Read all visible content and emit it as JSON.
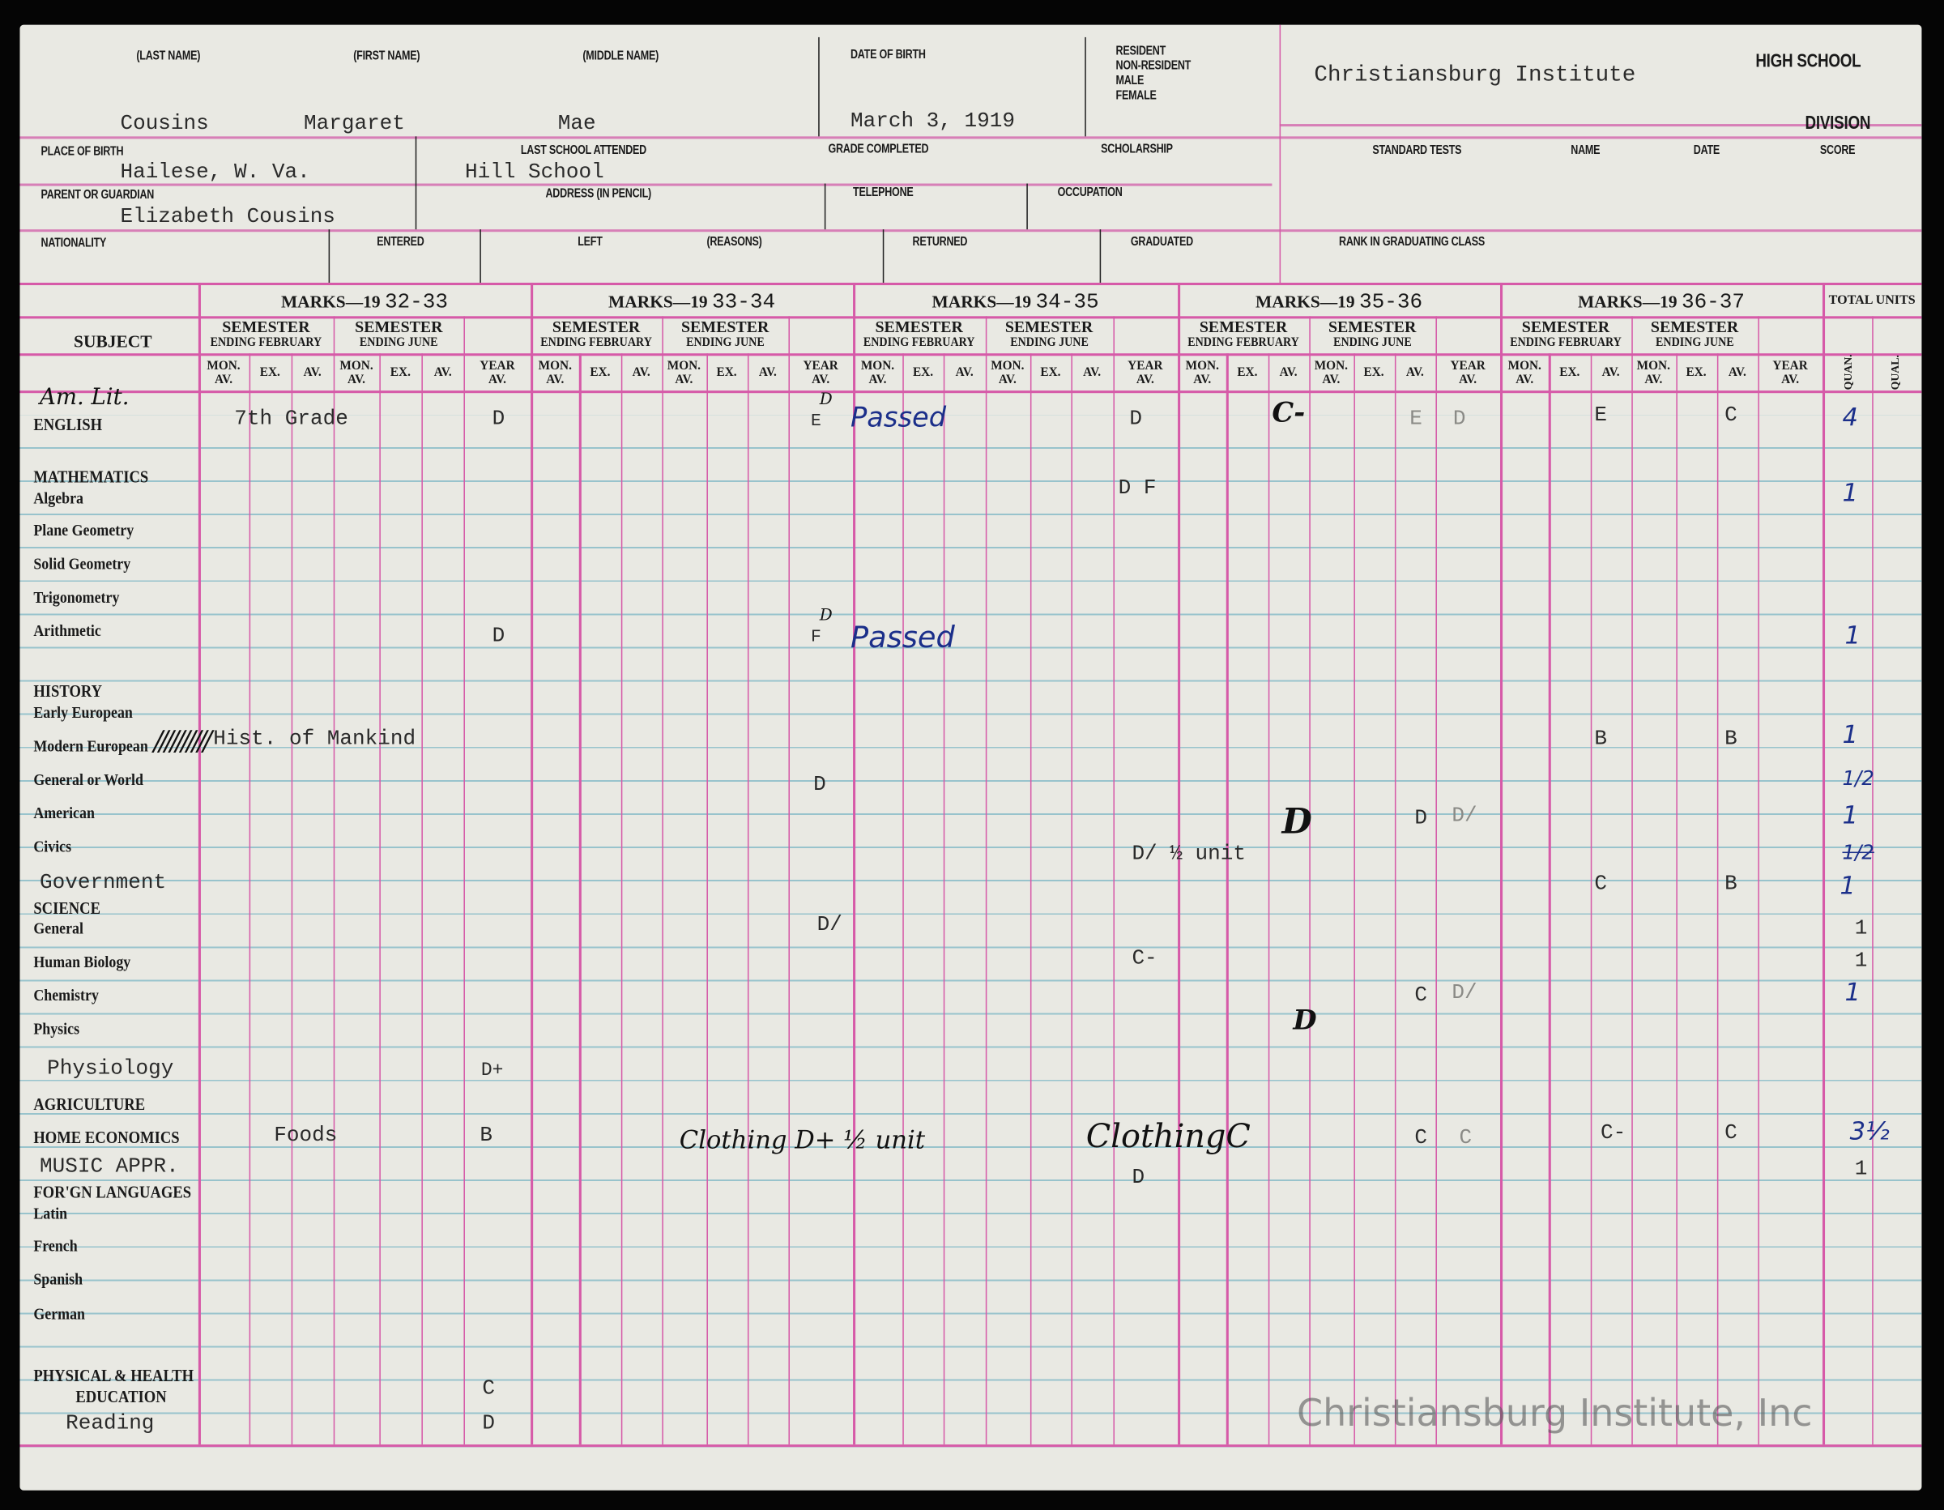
{
  "header": {
    "last_name_label": "(LAST NAME)",
    "first_name_label": "(FIRST NAME)",
    "middle_name_label": "(MIDDLE NAME)",
    "dob_label": "DATE OF BIRTH",
    "status_labels": [
      "RESIDENT",
      "NON-RESIDENT",
      "MALE",
      "FEMALE"
    ],
    "last_name": "Cousins",
    "first_name": "Margaret",
    "middle_name": "Mae",
    "dob": "March 3, 1919",
    "school_name": "Christiansburg Institute",
    "high_school_label": "HIGH SCHOOL",
    "division_label": "DIVISION",
    "place_of_birth_label": "PLACE OF BIRTH",
    "place_of_birth": "Hailese, W. Va.",
    "last_school_label": "LAST SCHOOL ATTENDED",
    "last_school": "Hill School",
    "grade_completed_label": "GRADE COMPLETED",
    "scholarship_label": "SCHOLARSHIP",
    "standard_tests_label": "STANDARD TESTS",
    "name_label": "NAME",
    "date_label": "DATE",
    "score_label": "SCORE",
    "parent_label": "PARENT OR GUARDIAN",
    "parent": "Elizabeth Cousins",
    "address_label": "ADDRESS (IN PENCIL)",
    "telephone_label": "TELEPHONE",
    "occupation_label": "OCCUPATION",
    "nationality_label": "NATIONALITY",
    "entered_label": "ENTERED",
    "left_label": "LEFT",
    "reasons_label": "(REASONS)",
    "returned_label": "RETURNED",
    "graduated_label": "GRADUATED",
    "rank_label": "RANK IN GRADUATING CLASS"
  },
  "marks": {
    "subject_header": "SUBJECT",
    "marks_prefix": "MARKS—19",
    "years": [
      "32-33",
      "33-34",
      "34-35",
      "35-36",
      "36-37"
    ],
    "semester": "SEMESTER",
    "ending_february": "ENDING FEBRUARY",
    "ending_june": "ENDING JUNE",
    "columns": [
      "MON. AV.",
      "EX.",
      "AV.",
      "MON. AV.",
      "EX.",
      "AV.",
      "YEAR AV."
    ],
    "total_units": "TOTAL UNITS",
    "quan": "QUAN.",
    "qual": "QUAL."
  },
  "subjects": {
    "english": "ENGLISH",
    "mathematics": "MATHEMATICS",
    "algebra": "Algebra",
    "plane_geometry": "Plane Geometry",
    "solid_geometry": "Solid Geometry",
    "trigonometry": "Trigonometry",
    "arithmetic": "Arithmetic",
    "history": "HISTORY",
    "early_european": "Early European",
    "modern_european": "Modern European",
    "general_world": "General or World",
    "american": "American",
    "civics": "Civics",
    "government": "Government",
    "science": "SCIENCE",
    "general": "General",
    "human_biology": "Human Biology",
    "chemistry": "Chemistry",
    "physics": "Physics",
    "physiology": "Physiology",
    "agriculture": "AGRICULTURE",
    "home_economics": "HOME ECONOMICS",
    "music": "MUSIC APPR.",
    "foreign_languages": "FOR'GN LANGUAGES",
    "latin": "Latin",
    "french": "French",
    "spanish": "Spanish",
    "german": "German",
    "physical_health": "PHYSICAL & HEALTH",
    "education": "EDUCATION",
    "reading": "Reading"
  },
  "records": {
    "english": {
      "note": "Am. Lit.",
      "grade_note": "7th Grade",
      "y3233_year": "D",
      "y3334_sup": "D",
      "y3334_year": "E",
      "y3334_note": "Passed",
      "y3435_year": "D",
      "y3536_feb_av": "C-",
      "y3536_june_av": "E",
      "y3536_year": "D",
      "y3637_feb_av": "E",
      "y3637_june_av": "C",
      "quan": "4"
    },
    "algebra": {
      "y3435_year": "D F",
      "quan": "1"
    },
    "arithmetic": {
      "y3233_year": "D",
      "y3334_sup": "D",
      "y3334_year": "F",
      "y3334_note": "Passed",
      "quan": "1"
    },
    "modern_european": {
      "strike": "//////////",
      "note": "Hist. of Mankind",
      "y3637_feb_av": "B",
      "y3637_june_av": "B",
      "quan": "1"
    },
    "general_world": {
      "y3334_year": "D",
      "quan": "1/2"
    },
    "american": {
      "y3536_feb_av": "D",
      "y3536_june_av": "D",
      "y3536_year": "D/",
      "quan": "1"
    },
    "civics": {
      "y3435_year": "D/ ½ unit",
      "quan": "1/2"
    },
    "government": {
      "y3637_feb_av": "C",
      "y3637_june_av": "B",
      "quan": "1"
    },
    "science_general": {
      "y3334_year": "D/",
      "quan": "1"
    },
    "human_biology": {
      "y3435_year": "C-",
      "quan": "1"
    },
    "chemistry": {
      "y3536_feb_av": "D",
      "y3536_june_av": "C",
      "y3536_year": "D/",
      "quan": "1"
    },
    "physiology": {
      "y3233_year": "D+"
    },
    "home_economics": {
      "note": "Foods",
      "y3233_year": "B",
      "y3334_note": "Clothing D+ ½ unit",
      "y3435_note": "ClothingC",
      "y3536_june_av": "C",
      "y3536_year": "C",
      "y3637_feb_av": "C-",
      "y3637_june_av": "C",
      "quan": "3½"
    },
    "music": {
      "y3435_year": "D",
      "quan": "1"
    },
    "physical_health": {
      "y3233_year": "C"
    },
    "reading": {
      "y3233_year": "D"
    }
  },
  "watermark": "Christiansburg Institute, Inc",
  "colors": {
    "paper": "#e9e9e3",
    "ruling_pink": "#d65aa8",
    "ruling_blue": "#98c3cc",
    "ink_blue": "#1b2f8a"
  }
}
